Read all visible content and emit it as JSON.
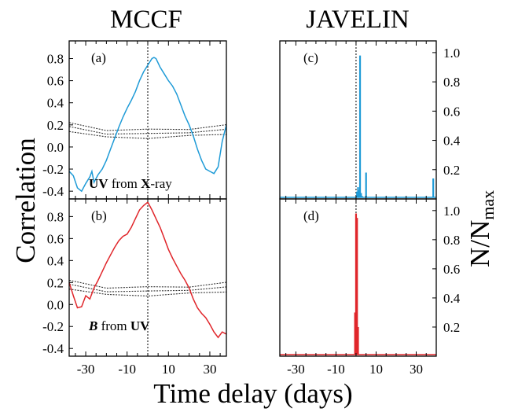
{
  "figure": {
    "titles": {
      "left": "MCCF",
      "right": "JAVELIN"
    },
    "ylabel_left": "Correlation",
    "ylabel_right_main": "N/N",
    "ylabel_right_sub": "max",
    "xlabel": "Time delay (days)"
  },
  "colors": {
    "uv_blue": "#1f9bd7",
    "b_red": "#e0262b",
    "noise": "#333333",
    "axis": "#000000"
  },
  "chart_data": [
    {
      "type": "line",
      "panel_label": "(a)",
      "annotation_parts": [
        {
          "text": "UV",
          "bold": true,
          "italic": false
        },
        {
          "text": " from ",
          "bold": false,
          "italic": false
        },
        {
          "text": "X",
          "bold": true,
          "italic": false
        },
        {
          "text": "-ray",
          "bold": false,
          "italic": false
        }
      ],
      "xlim": [
        -38,
        38
      ],
      "ylim": [
        -0.47,
        0.96
      ],
      "yticks": [
        -0.4,
        -0.2,
        0.0,
        0.2,
        0.4,
        0.6,
        0.8
      ],
      "ytick_labels": [
        "-0.4",
        "-0.2",
        "0.0",
        "0.2",
        "0.4",
        "0.6",
        "0.8"
      ],
      "xticks": [
        -30,
        -10,
        10,
        30
      ],
      "peak_marker_x": 0,
      "series": [
        {
          "color": "#1f9bd7",
          "x": [
            -38,
            -36,
            -34,
            -32,
            -30,
            -28,
            -27,
            -26,
            -24,
            -22,
            -20,
            -18,
            -16,
            -14,
            -12,
            -10,
            -8,
            -6,
            -4,
            -2,
            0,
            2,
            3,
            4,
            6,
            8,
            10,
            12,
            14,
            16,
            18,
            20,
            22,
            24,
            26,
            28,
            30,
            32,
            34,
            36,
            38
          ],
          "y": [
            -0.22,
            -0.26,
            -0.37,
            -0.4,
            -0.33,
            -0.27,
            -0.22,
            -0.32,
            -0.25,
            -0.2,
            -0.12,
            -0.02,
            0.08,
            0.18,
            0.27,
            0.35,
            0.42,
            0.5,
            0.6,
            0.68,
            0.74,
            0.8,
            0.81,
            0.8,
            0.72,
            0.66,
            0.6,
            0.55,
            0.48,
            0.38,
            0.28,
            0.2,
            0.1,
            -0.02,
            -0.12,
            -0.2,
            -0.22,
            -0.24,
            -0.18,
            0.05,
            0.2
          ]
        }
      ],
      "noise_band": {
        "x": [
          -38,
          -20,
          0,
          20,
          38
        ],
        "low": [
          0.14,
          0.09,
          0.08,
          0.1,
          0.12
        ],
        "high": [
          0.22,
          0.18,
          0.16,
          0.19,
          0.22
        ]
      }
    },
    {
      "type": "line",
      "panel_label": "(b)",
      "annotation_parts": [
        {
          "text": "B",
          "bold": true,
          "italic": true
        },
        {
          "text": " from ",
          "bold": false,
          "italic": false
        },
        {
          "text": "UV",
          "bold": true,
          "italic": false
        }
      ],
      "xlim": [
        -38,
        38
      ],
      "ylim": [
        -0.47,
        0.96
      ],
      "yticks": [
        -0.4,
        -0.2,
        0.0,
        0.2,
        0.4,
        0.6,
        0.8
      ],
      "ytick_labels": [
        "-0.4",
        "-0.2",
        "0.0",
        "0.2",
        "0.4",
        "0.6",
        "0.8"
      ],
      "xticks": [
        -30,
        -10,
        10,
        30
      ],
      "xtick_labels": [
        "-30",
        "-10",
        "10",
        "30"
      ],
      "peak_marker_x": 0,
      "series": [
        {
          "color": "#e0262b",
          "x": [
            -38,
            -36,
            -34,
            -32,
            -30,
            -28,
            -26,
            -24,
            -22,
            -20,
            -18,
            -16,
            -14,
            -12,
            -10,
            -8,
            -6,
            -4,
            -2,
            0,
            2,
            4,
            6,
            8,
            10,
            12,
            14,
            16,
            18,
            20,
            22,
            24,
            26,
            28,
            30,
            32,
            34,
            36,
            38
          ],
          "y": [
            0.2,
            0.08,
            -0.03,
            -0.02,
            0.08,
            0.05,
            0.15,
            0.22,
            0.3,
            0.38,
            0.45,
            0.52,
            0.58,
            0.62,
            0.64,
            0.7,
            0.78,
            0.86,
            0.9,
            0.93,
            0.86,
            0.78,
            0.7,
            0.6,
            0.5,
            0.42,
            0.35,
            0.28,
            0.22,
            0.15,
            0.05,
            -0.03,
            -0.08,
            -0.12,
            -0.18,
            -0.25,
            -0.3,
            -0.25,
            -0.27
          ]
        }
      ],
      "noise_band": {
        "x": [
          -38,
          -20,
          0,
          20,
          38
        ],
        "low": [
          0.14,
          0.09,
          0.08,
          0.1,
          0.12
        ],
        "high": [
          0.22,
          0.18,
          0.16,
          0.19,
          0.22
        ]
      }
    },
    {
      "type": "bar",
      "panel_label": "(c)",
      "xlim": [
        -38,
        40
      ],
      "ylim": [
        0,
        1.08
      ],
      "yticks": [
        0.2,
        0.4,
        0.6,
        0.8,
        1.0
      ],
      "ytick_labels": [
        "0.2",
        "0.4",
        "0.6",
        "0.8",
        "1.0"
      ],
      "xticks": [
        -30,
        -10,
        10,
        30
      ],
      "peak_marker_x": 0,
      "series": [
        {
          "color": "#1f9bd7",
          "x": [
            -0.5,
            0.5,
            1,
            1.5,
            2,
            2.5,
            3,
            5,
            38.5
          ],
          "y": [
            0.01,
            0.05,
            0.08,
            0.06,
            0.98,
            0.04,
            0.02,
            0.18,
            0.14
          ]
        }
      ]
    },
    {
      "type": "bar",
      "panel_label": "(d)",
      "xlim": [
        -38,
        40
      ],
      "ylim": [
        0,
        1.08
      ],
      "yticks": [
        0.2,
        0.4,
        0.6,
        0.8,
        1.0
      ],
      "ytick_labels": [
        "0.2",
        "0.4",
        "0.6",
        "0.8",
        "1.0"
      ],
      "xticks": [
        -30,
        -10,
        10,
        30
      ],
      "xtick_labels": [
        "-30",
        "-10",
        "10",
        "30"
      ],
      "peak_marker_x": 0,
      "series": [
        {
          "color": "#e0262b",
          "x": [
            -0.5,
            0,
            0.5,
            1
          ],
          "y": [
            0.3,
            0.98,
            0.95,
            0.2
          ]
        }
      ]
    }
  ]
}
